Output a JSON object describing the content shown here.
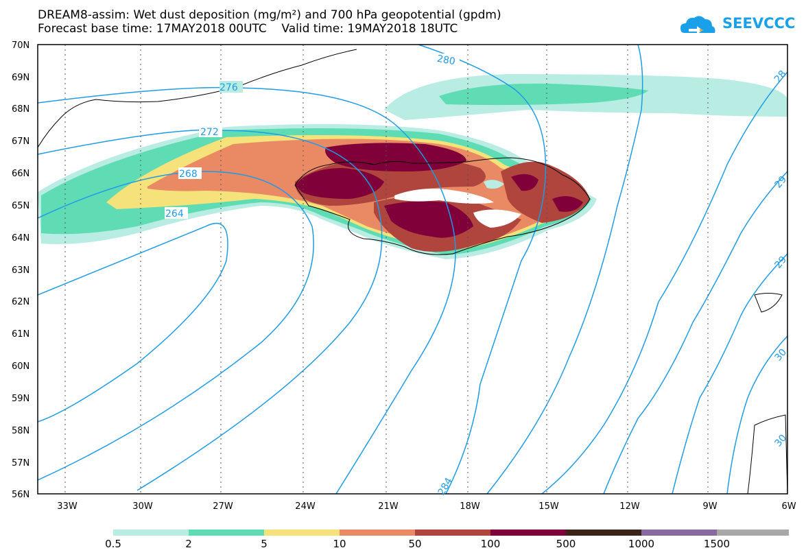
{
  "header": {
    "line1": "DREAM8-assim: Wet dust deposition (mg/m²) and 700 hPa geopotential (gpdm)",
    "line2": "Forecast base time: 17MAY2018 00UTC    Valid time: 19MAY2018 18UTC"
  },
  "logo": {
    "text": "SEEVCCC",
    "icon": "cloud-icon",
    "color": "#1aa0e8"
  },
  "map": {
    "lat_labels": [
      "70N",
      "69N",
      "68N",
      "67N",
      "66N",
      "65N",
      "64N",
      "63N",
      "62N",
      "61N",
      "60N",
      "59N",
      "58N",
      "57N",
      "56N"
    ],
    "lon_labels": [
      "33W",
      "30W",
      "27W",
      "24W",
      "21W",
      "18W",
      "15W",
      "12W",
      "9W",
      "6W"
    ],
    "contour_color": "#1e9be6",
    "contour_labels": [
      "280",
      "276",
      "272",
      "268",
      "264",
      "284",
      "28",
      "29",
      "29",
      "30",
      "30"
    ]
  },
  "colorbar": {
    "labels": [
      "0.5",
      "2",
      "5",
      "10",
      "50",
      "100",
      "500",
      "1000",
      "1500"
    ],
    "colors": [
      "#b9ede3",
      "#5fdcb3",
      "#f5e27a",
      "#e98a64",
      "#b0453d",
      "#800039",
      "#3a2418",
      "#8a68a0",
      "#a8a8a8"
    ]
  }
}
